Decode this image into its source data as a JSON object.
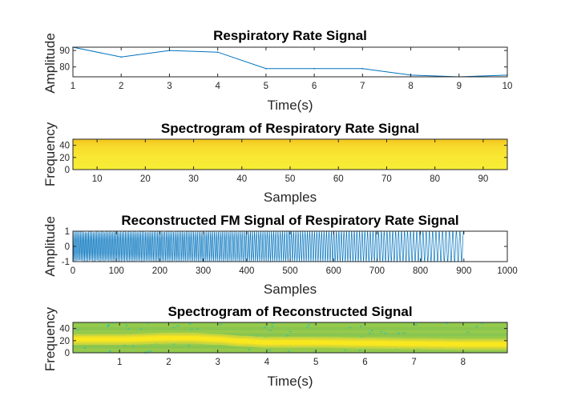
{
  "figure": {
    "background": "#ffffff"
  },
  "chart_data": [
    {
      "type": "line",
      "title": "Respiratory Rate Signal",
      "xlabel": "Time(s)",
      "ylabel": "Amplitude",
      "xlim": [
        1,
        10
      ],
      "ylim": [
        74,
        92
      ],
      "xticks": [
        1,
        2,
        3,
        4,
        5,
        6,
        7,
        8,
        9,
        10
      ],
      "yticks": [
        80,
        90
      ],
      "grid": false,
      "series": [
        {
          "x": [
            1,
            2,
            3,
            4,
            5,
            6,
            7,
            8,
            9,
            10
          ],
          "y": [
            92,
            86,
            90,
            89,
            79,
            79,
            79,
            75,
            74,
            75
          ],
          "color": "#0072BD"
        }
      ]
    },
    {
      "type": "heatmap",
      "title": "Spectrogram of Respiratory Rate Signal",
      "xlabel": "Samples",
      "ylabel": "Frequency",
      "xlim": [
        5,
        95
      ],
      "ylim": [
        0,
        50
      ],
      "xticks": [
        10,
        20,
        30,
        40,
        50,
        60,
        70,
        80,
        90
      ],
      "yticks": [
        0,
        20,
        40
      ],
      "colormap": {
        "low": "#f9e732",
        "high": "#f4c51f"
      },
      "description_values": {
        "fill": "near-maximum intensity across all samples"
      }
    },
    {
      "type": "line",
      "title": "Reconstructed FM Signal of Respiratory Rate Signal",
      "xlabel": "Samples",
      "ylabel": "Amplitude",
      "xlim": [
        0,
        1000
      ],
      "ylim": [
        -1,
        1
      ],
      "xticks": [
        0,
        100,
        200,
        300,
        400,
        500,
        600,
        700,
        800,
        900,
        1000
      ],
      "yticks": [
        -1,
        0,
        1
      ],
      "grid": false,
      "series": [
        {
          "signal": "fm",
          "x_range": [
            0,
            900
          ],
          "amplitude": 1,
          "cycles_per_sample": [
            0.285,
            0.12
          ],
          "color": "#0072BD"
        }
      ]
    },
    {
      "type": "heatmap",
      "title": "Spectrogram of Reconstructed Signal",
      "xlabel": "Time(s)",
      "ylabel": "Frequency",
      "xlim": [
        0.05,
        8.9
      ],
      "ylim": [
        0,
        50
      ],
      "xticks": [
        1,
        2,
        3,
        4,
        5,
        6,
        7,
        8
      ],
      "yticks": [
        0,
        20,
        40
      ],
      "ridge": {
        "t": [
          0.05,
          1,
          2,
          2.5,
          3,
          3.5,
          4,
          5,
          6,
          7,
          8,
          8.9
        ],
        "f": [
          22,
          22,
          24,
          24,
          22,
          19,
          17,
          17,
          16,
          15,
          14,
          14
        ]
      },
      "colormap": {
        "background": "#8fc84e",
        "mid": "#d7d93a",
        "peak": "#f9e81e",
        "speckle": "#36c2a4"
      }
    }
  ]
}
